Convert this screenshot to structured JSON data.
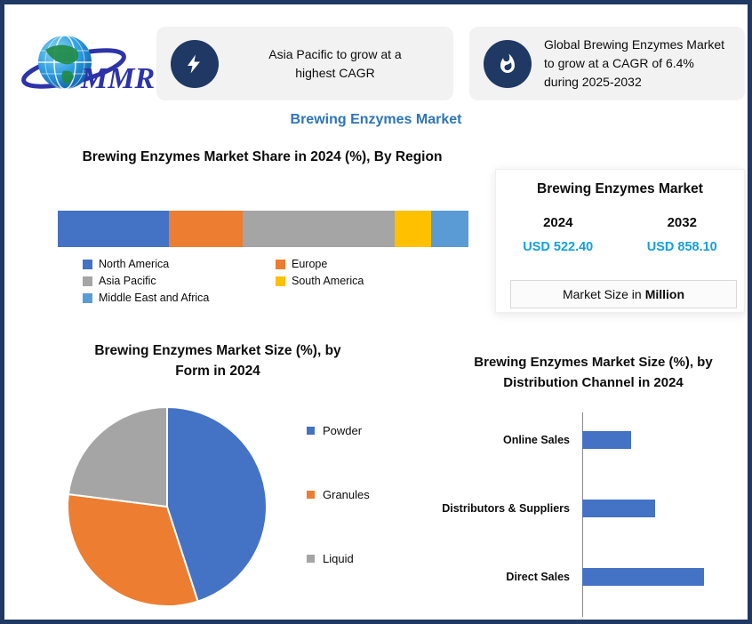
{
  "page": {
    "title": "Brewing Enzymes Market"
  },
  "logo": {
    "label": "MMR"
  },
  "callouts": [
    {
      "icon": "lightning-icon",
      "text": "Asia Pacific to grow at a highest CAGR"
    },
    {
      "icon": "flame-icon",
      "text": "Global Brewing Enzymes Market to grow at a CAGR of 6.4% during 2025-2032"
    }
  ],
  "market_card": {
    "title": "Brewing Enzymes Market",
    "columns": [
      {
        "year": "2024",
        "value": "USD 522.40"
      },
      {
        "year": "2032",
        "value": "USD 858.10"
      }
    ],
    "note_prefix": "Market Size in",
    "note_bold": "Million"
  },
  "colors": {
    "navy": "#203864",
    "accent_blue": "#2e75b6",
    "value_blue": "#14a0dc",
    "series_blue": "#4472c4",
    "series_orange": "#ed7d31",
    "series_gray": "#a5a5a5",
    "series_yellow": "#ffc000",
    "series_lightblue": "#5b9bd5"
  },
  "chart_data": [
    {
      "type": "bar",
      "variant": "stacked-horizontal",
      "title": "Brewing Enzymes Market Share in 2024 (%), By Region",
      "unit": "%",
      "legend_position": "bottom",
      "segments": [
        {
          "name": "North America",
          "value": 27,
          "color": "#4472c4"
        },
        {
          "name": "Europe",
          "value": 18,
          "color": "#ed7d31"
        },
        {
          "name": "Asia Pacific",
          "value": 37,
          "color": "#a5a5a5"
        },
        {
          "name": "South America",
          "value": 9,
          "color": "#ffc000"
        },
        {
          "name": "Middle East and Africa",
          "value": 9,
          "color": "#5b9bd5"
        }
      ]
    },
    {
      "type": "pie",
      "title": "Brewing Enzymes Market Size (%), by Form in 2024",
      "legend_position": "right",
      "slices": [
        {
          "name": "Powder",
          "value": 45,
          "color": "#4472c4"
        },
        {
          "name": "Granules",
          "value": 32,
          "color": "#ed7d31"
        },
        {
          "name": "Liquid",
          "value": 23,
          "color": "#a5a5a5"
        }
      ]
    },
    {
      "type": "bar",
      "variant": "horizontal",
      "title": "Brewing Enzymes Market Size (%), by Distribution Channel in 2024",
      "categories": [
        "Online Sales",
        "Distributors & Suppliers",
        "Direct Sales"
      ],
      "values": [
        20,
        30,
        50
      ],
      "xlim": [
        0,
        55
      ],
      "color": "#4472c4"
    }
  ]
}
